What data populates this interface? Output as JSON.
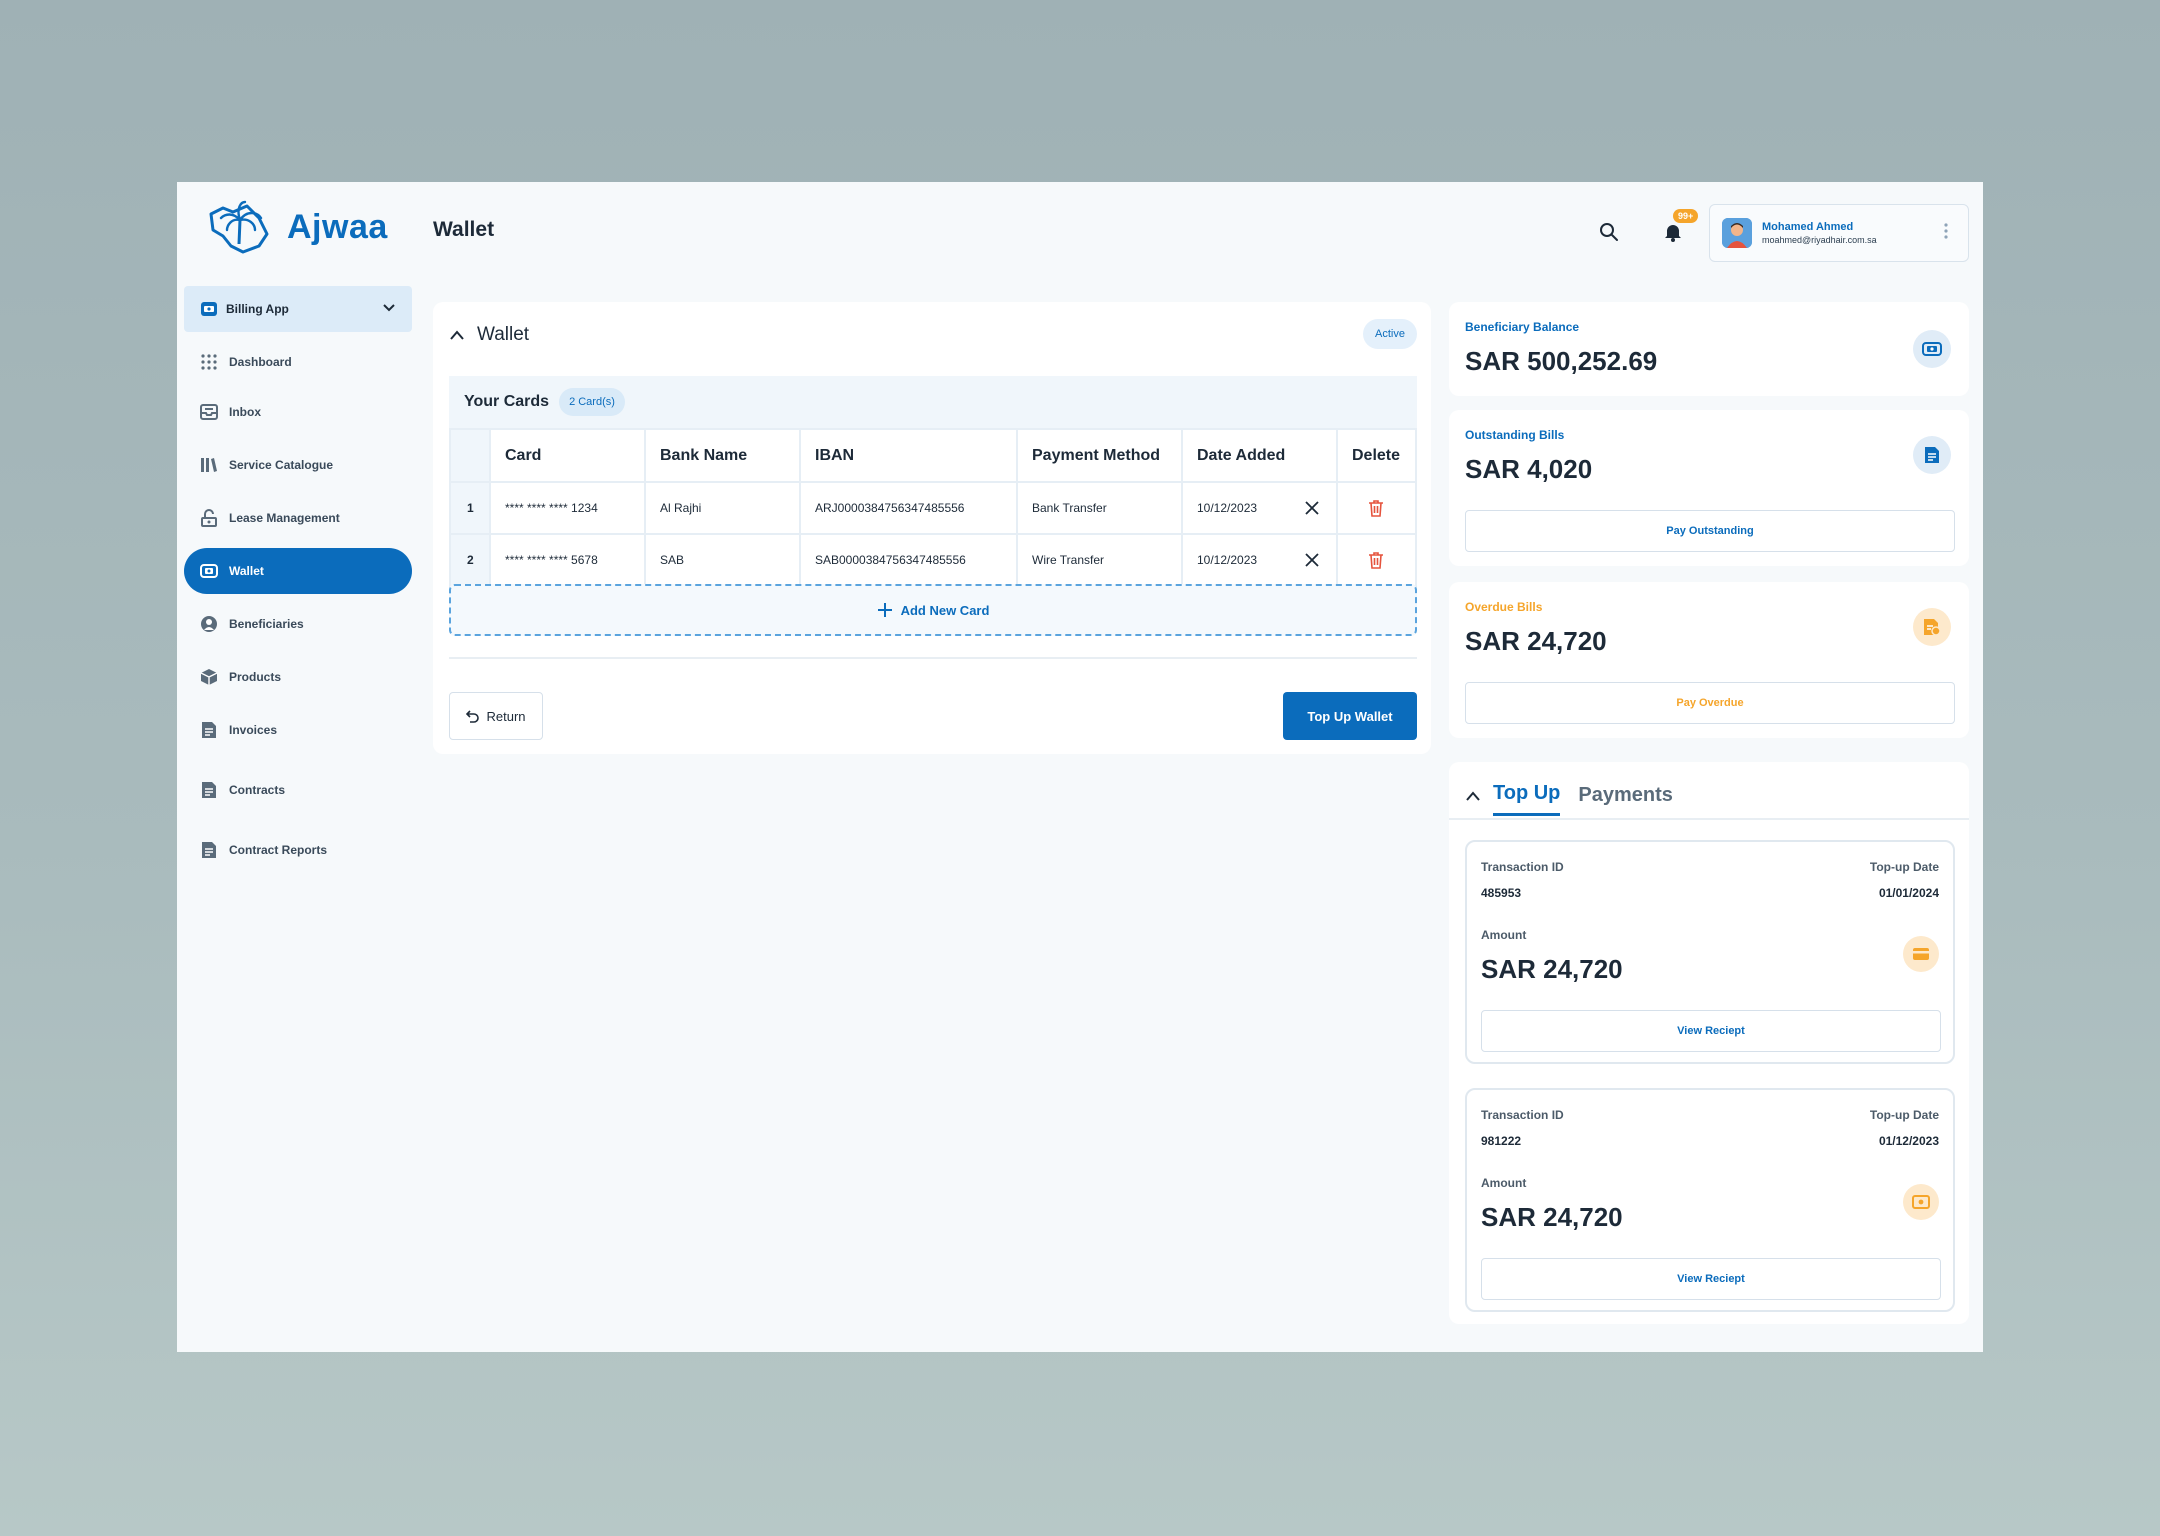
{
  "app": {
    "logo_text": "Ajwaa",
    "page_title": "Wallet"
  },
  "header": {
    "notification_badge": "99+",
    "user": {
      "name": "Mohamed Ahmed",
      "email": "moahmed@riyadhair.com.sa"
    }
  },
  "sidebar": {
    "app_switcher": "Billing App",
    "items": [
      {
        "label": "Dashboard",
        "icon": "grid-icon"
      },
      {
        "label": "Inbox",
        "icon": "inbox-icon"
      },
      {
        "label": "Service Catalogue",
        "icon": "books-icon"
      },
      {
        "label": "Lease Management",
        "icon": "lease-icon"
      },
      {
        "label": "Wallet",
        "icon": "wallet-icon",
        "active": true
      },
      {
        "label": "Beneficiaries",
        "icon": "user-circle-icon"
      },
      {
        "label": "Products",
        "icon": "box-icon"
      },
      {
        "label": "Invoices",
        "icon": "document-icon"
      },
      {
        "label": "Contracts",
        "icon": "document-icon"
      },
      {
        "label": "Contract Reports",
        "icon": "document-icon"
      }
    ]
  },
  "wallet": {
    "title": "Wallet",
    "status": "Active",
    "cards_title": "Your Cards",
    "cards_count": "2 Card(s)",
    "columns": [
      "Card",
      "Bank Name",
      "IBAN",
      "Payment Method",
      "Date Added",
      "Delete"
    ],
    "rows": [
      {
        "num": "1",
        "card": "**** **** **** 1234",
        "bank": "Al Rajhi",
        "iban": "ARJ0000384756347485556",
        "method": "Bank Transfer",
        "date": "10/12/2023"
      },
      {
        "num": "2",
        "card": "**** **** **** 5678",
        "bank": "SAB",
        "iban": "SAB0000384756347485556",
        "method": "Wire Transfer",
        "date": "10/12/2023"
      }
    ],
    "add_card": "Add New Card",
    "return": "Return",
    "top_up": "Top Up Wallet"
  },
  "stats": {
    "beneficiary": {
      "label": "Beneficiary Balance",
      "value": "SAR 500,252.69"
    },
    "outstanding": {
      "label": "Outstanding Bills",
      "value": "SAR 4,020",
      "button": "Pay Outstanding"
    },
    "overdue": {
      "label": "Overdue Bills",
      "value": "SAR 24,720",
      "button": "Pay Overdue"
    }
  },
  "transactions": {
    "tabs": [
      "Top Up",
      "Payments"
    ],
    "id_label": "Transaction ID",
    "date_label": "Top-up Date",
    "amount_label": "Amount",
    "button": "View Reciept",
    "items": [
      {
        "id": "485953",
        "date": "01/01/2024",
        "amount": "SAR 24,720"
      },
      {
        "id": "981222",
        "date": "01/12/2023",
        "amount": "SAR 24,720"
      }
    ]
  },
  "colors": {
    "primary": "#0b6cbc",
    "warning": "#f5a52b",
    "danger": "#e5533d"
  }
}
